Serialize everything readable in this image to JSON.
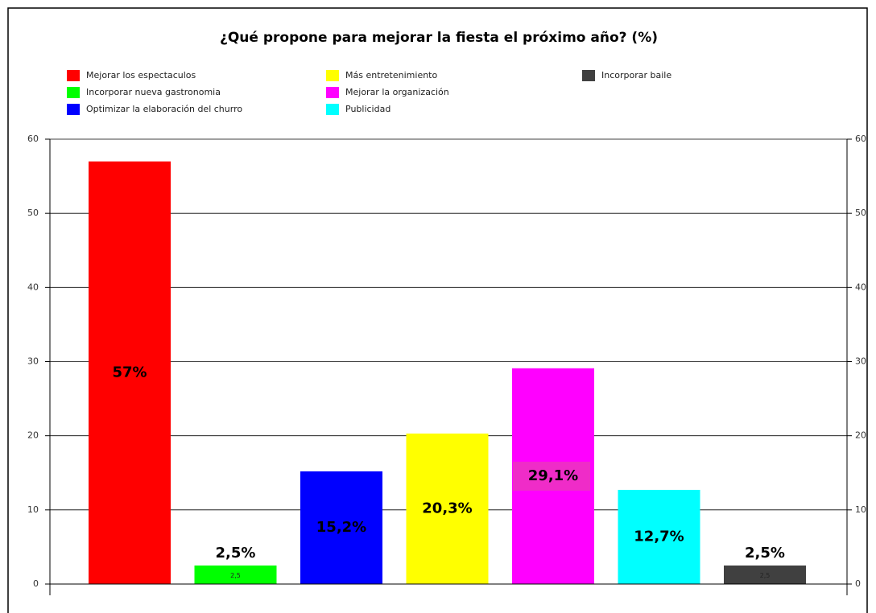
{
  "chart_data": {
    "type": "bar",
    "title": "¿Qué propone para mejorar la fiesta el próximo año? (%)",
    "series": [
      {
        "name": "Mejorar los espectaculos",
        "color": "#ff0000",
        "values": [
          57
        ],
        "value_labels": [
          "57%"
        ]
      },
      {
        "name": "Incorporar nueva gastronomia",
        "color": "#00ff00",
        "values": [
          2.5
        ],
        "value_labels": [
          "2,5%"
        ],
        "inner_labels": [
          "2,5"
        ]
      },
      {
        "name": "Optimizar la elaboración del churro",
        "color": "#0000ff",
        "values": [
          15.2
        ],
        "value_labels": [
          "15,2%"
        ]
      },
      {
        "name": "Más entretenimiento",
        "color": "#ffff00",
        "values": [
          20.3
        ],
        "value_labels": [
          "20,3%"
        ]
      },
      {
        "name": "Mejorar la organización",
        "color": "#ff00ff",
        "values": [
          29.1
        ],
        "value_labels": [
          "29,1%"
        ]
      },
      {
        "name": "Publicidad",
        "color": "#00ffff",
        "values": [
          12.7
        ],
        "value_labels": [
          "12,7%"
        ]
      },
      {
        "name": "Incorporar baile",
        "color": "#404040",
        "values": [
          2.5
        ],
        "value_labels": [
          "2,5%"
        ],
        "inner_labels": [
          "2,5"
        ]
      }
    ],
    "ylim": [
      0,
      60
    ],
    "yticks": [
      0,
      10,
      20,
      30,
      40,
      50,
      60
    ],
    "y2lim": [
      0,
      60
    ],
    "y2ticks": [
      0,
      10,
      20,
      30,
      40,
      50,
      60
    ],
    "grid": true
  }
}
